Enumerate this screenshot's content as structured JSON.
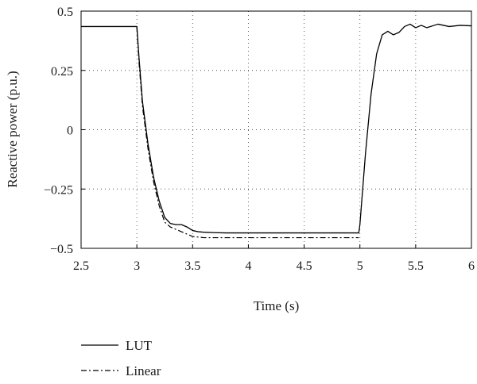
{
  "chart_data": {
    "type": "line",
    "title": "",
    "xlabel": "Time (s)",
    "ylabel": "Reactive power (p.u.)",
    "xlim": [
      2.5,
      6
    ],
    "ylim": [
      -0.5,
      0.5
    ],
    "xticks": [
      2.5,
      3,
      3.5,
      4,
      4.5,
      5,
      5.5,
      6
    ],
    "xtick_labels": [
      "2.5",
      "3",
      "3.5",
      "4",
      "4.5",
      "5",
      "5.5",
      "6"
    ],
    "yticks": [
      0.5,
      0.25,
      0,
      -0.25,
      -0.5
    ],
    "ytick_labels": [
      "0.5",
      "0.25",
      "0",
      "−0.25",
      "−0.5"
    ],
    "grid": true,
    "legend_position": "bottom-left",
    "series": [
      {
        "name": "LUT",
        "style": "solid",
        "color": "#000000",
        "x": [
          2.5,
          3.0,
          3.02,
          3.05,
          3.1,
          3.15,
          3.2,
          3.25,
          3.3,
          3.35,
          3.4,
          3.45,
          3.5,
          3.55,
          3.6,
          3.7,
          3.8,
          4.0,
          4.5,
          4.99,
          5.0,
          5.05,
          5.1,
          5.15,
          5.2,
          5.25,
          5.3,
          5.35,
          5.4,
          5.45,
          5.5,
          5.55,
          5.6,
          5.7,
          5.8,
          5.9,
          6.0
        ],
        "y": [
          0.435,
          0.435,
          0.3,
          0.12,
          -0.06,
          -0.2,
          -0.3,
          -0.37,
          -0.395,
          -0.4,
          -0.4,
          -0.41,
          -0.425,
          -0.43,
          -0.432,
          -0.434,
          -0.435,
          -0.435,
          -0.435,
          -0.435,
          -0.4,
          -0.1,
          0.15,
          0.32,
          0.4,
          0.415,
          0.4,
          0.41,
          0.435,
          0.445,
          0.43,
          0.44,
          0.43,
          0.445,
          0.435,
          0.44,
          0.438
        ]
      },
      {
        "name": "Linear",
        "style": "dashdot",
        "color": "#000000",
        "x": [
          3.0,
          3.02,
          3.05,
          3.1,
          3.15,
          3.2,
          3.25,
          3.3,
          3.35,
          3.4,
          3.5,
          3.6,
          3.8,
          4.0,
          4.5,
          4.99
        ],
        "y": [
          0.435,
          0.28,
          0.1,
          -0.08,
          -0.22,
          -0.32,
          -0.39,
          -0.41,
          -0.42,
          -0.43,
          -0.45,
          -0.455,
          -0.455,
          -0.455,
          -0.455,
          -0.455
        ]
      }
    ]
  }
}
